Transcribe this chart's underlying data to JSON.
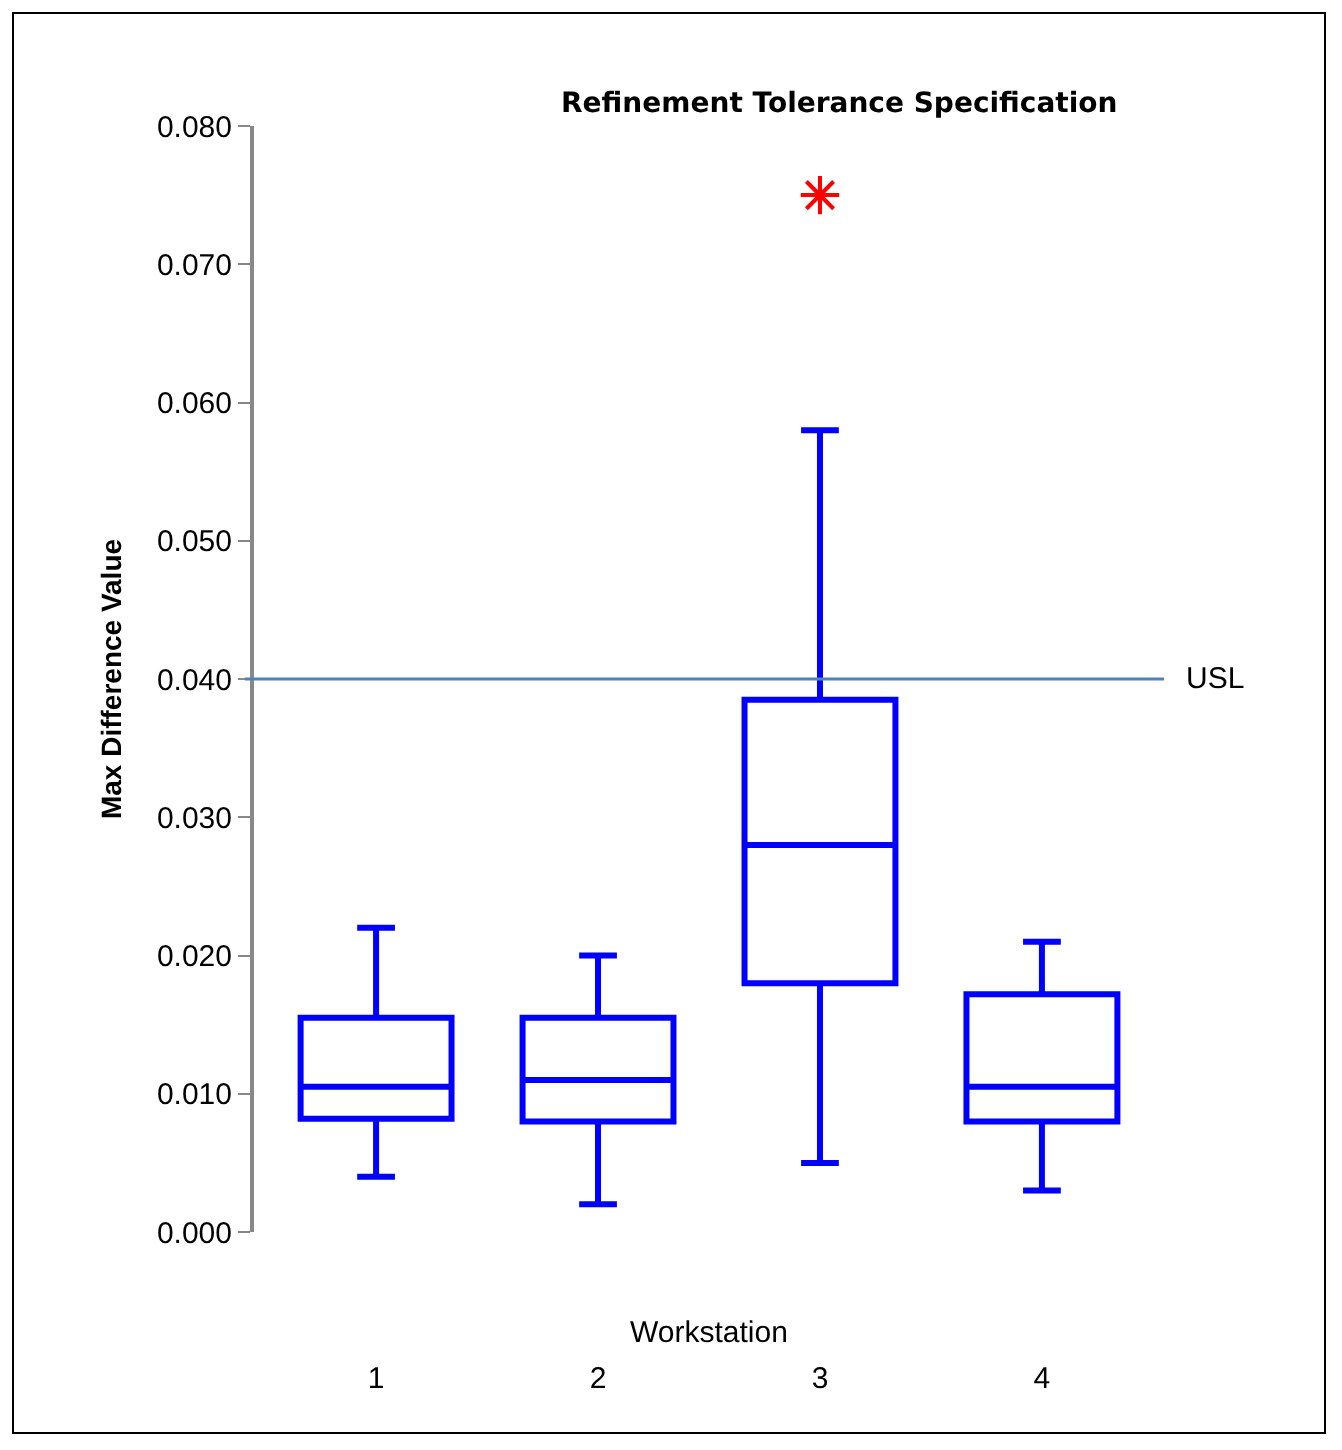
{
  "chart_data": {
    "type": "box",
    "title": "Refinement Tolerance Specification",
    "xlabel": "Workstation",
    "ylabel": "Max Difference Value",
    "categories": [
      "1",
      "2",
      "3",
      "4"
    ],
    "series": [
      {
        "color": "#0000ff",
        "boxes": [
          {
            "low": 0.004,
            "q1": 0.0082,
            "median": 0.0105,
            "q3": 0.0155,
            "high": 0.022
          },
          {
            "low": 0.002,
            "q1": 0.008,
            "median": 0.011,
            "q3": 0.0155,
            "high": 0.02
          },
          {
            "low": 0.005,
            "q1": 0.018,
            "median": 0.028,
            "q3": 0.0385,
            "high": 0.058,
            "outliers": [
              0.075
            ]
          },
          {
            "low": 0.003,
            "q1": 0.008,
            "median": 0.0105,
            "q3": 0.0172,
            "high": 0.021
          }
        ]
      }
    ],
    "ylim": [
      0,
      0.08
    ],
    "yticks": [
      {
        "value": 0,
        "label": "0.000"
      },
      {
        "value": 0.01,
        "label": "0.010"
      },
      {
        "value": 0.02,
        "label": "0.020"
      },
      {
        "value": 0.03,
        "label": "0.030"
      },
      {
        "value": 0.04,
        "label": "0.040"
      },
      {
        "value": 0.05,
        "label": "0.050"
      },
      {
        "value": 0.06,
        "label": "0.060"
      },
      {
        "value": 0.07,
        "label": "0.070"
      },
      {
        "value": 0.08,
        "label": "0.080"
      }
    ],
    "ref_lines": [
      {
        "axis": "y",
        "value": 0.04,
        "label": "USL",
        "color": "#4f81bd"
      }
    ],
    "marker": "star"
  }
}
